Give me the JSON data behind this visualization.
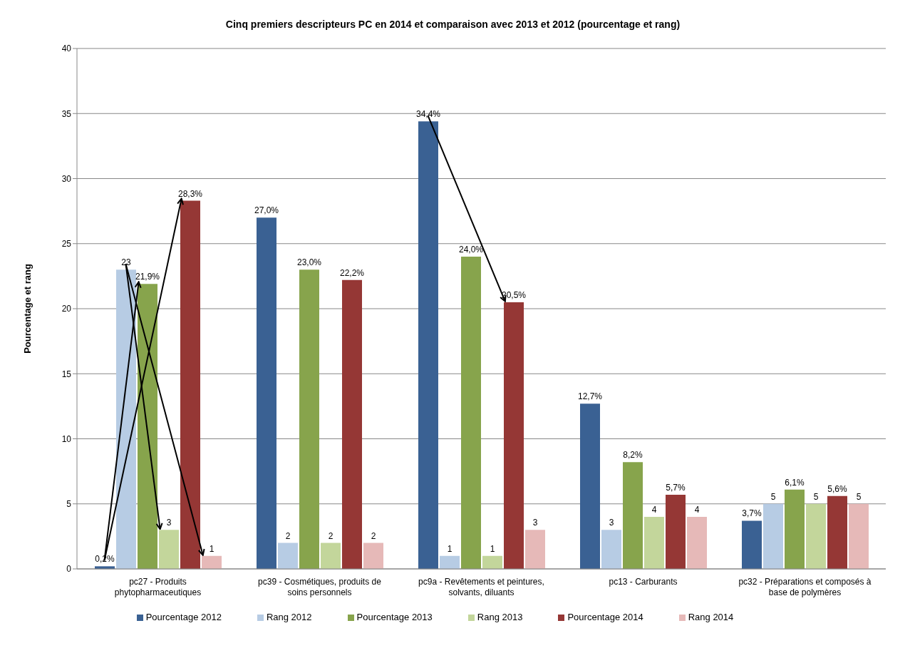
{
  "chart_data": {
    "type": "bar",
    "title": "Cinq premiers descripteurs PC en 2014 et comparaison avec 2013 et 2012 (pourcentage et rang)",
    "ylabel": "Pourcentage et rang",
    "categories": [
      "pc27 - Produits phytopharmaceutiques",
      "pc39 - Cosmétiques, produits de soins personnels",
      "pc9a - Revêtements et peintures, solvants, diluants",
      "pc13 - Carburants",
      "pc32 - Préparations et composés à base de polymères"
    ],
    "series": [
      {
        "name": "Pourcentage 2012",
        "color": "#3a6193",
        "values": [
          0.2,
          27.0,
          34.4,
          12.7,
          3.7
        ],
        "value_labels": [
          "0,2%",
          "27,0%",
          "34,4%",
          "12,7%",
          "3,7%"
        ]
      },
      {
        "name": "Rang 2012",
        "color": "#b7cce4",
        "values": [
          23,
          2,
          1,
          3,
          5
        ],
        "value_labels": [
          "23",
          "2",
          "1",
          "3",
          "5"
        ]
      },
      {
        "name": "Pourcentage 2013",
        "color": "#87a44c",
        "values": [
          21.9,
          23.0,
          24.0,
          8.2,
          6.1
        ],
        "value_labels": [
          "21,9%",
          "23,0%",
          "24,0%",
          "8,2%",
          "6,1%"
        ]
      },
      {
        "name": "Rang 2013",
        "color": "#c3d69b",
        "values": [
          3,
          2,
          1,
          4,
          5
        ],
        "value_labels": [
          "3",
          "2",
          "1",
          "4",
          "5"
        ]
      },
      {
        "name": "Pourcentage 2014",
        "color": "#953735",
        "values": [
          28.3,
          22.2,
          20.5,
          5.7,
          5.6
        ],
        "value_labels": [
          "28,3%",
          "22,2%",
          "20,5%",
          "5,7%",
          "5,6%"
        ]
      },
      {
        "name": "Rang 2014",
        "color": "#e6b9b8",
        "values": [
          1,
          2,
          3,
          4,
          5
        ],
        "value_labels": [
          "1",
          "2",
          "3",
          "4",
          "5"
        ]
      }
    ],
    "ylim": [
      0,
      40
    ],
    "yticks": [
      0,
      5,
      10,
      15,
      20,
      25,
      30,
      35,
      40
    ],
    "grid": "y",
    "legend": "bottom"
  }
}
